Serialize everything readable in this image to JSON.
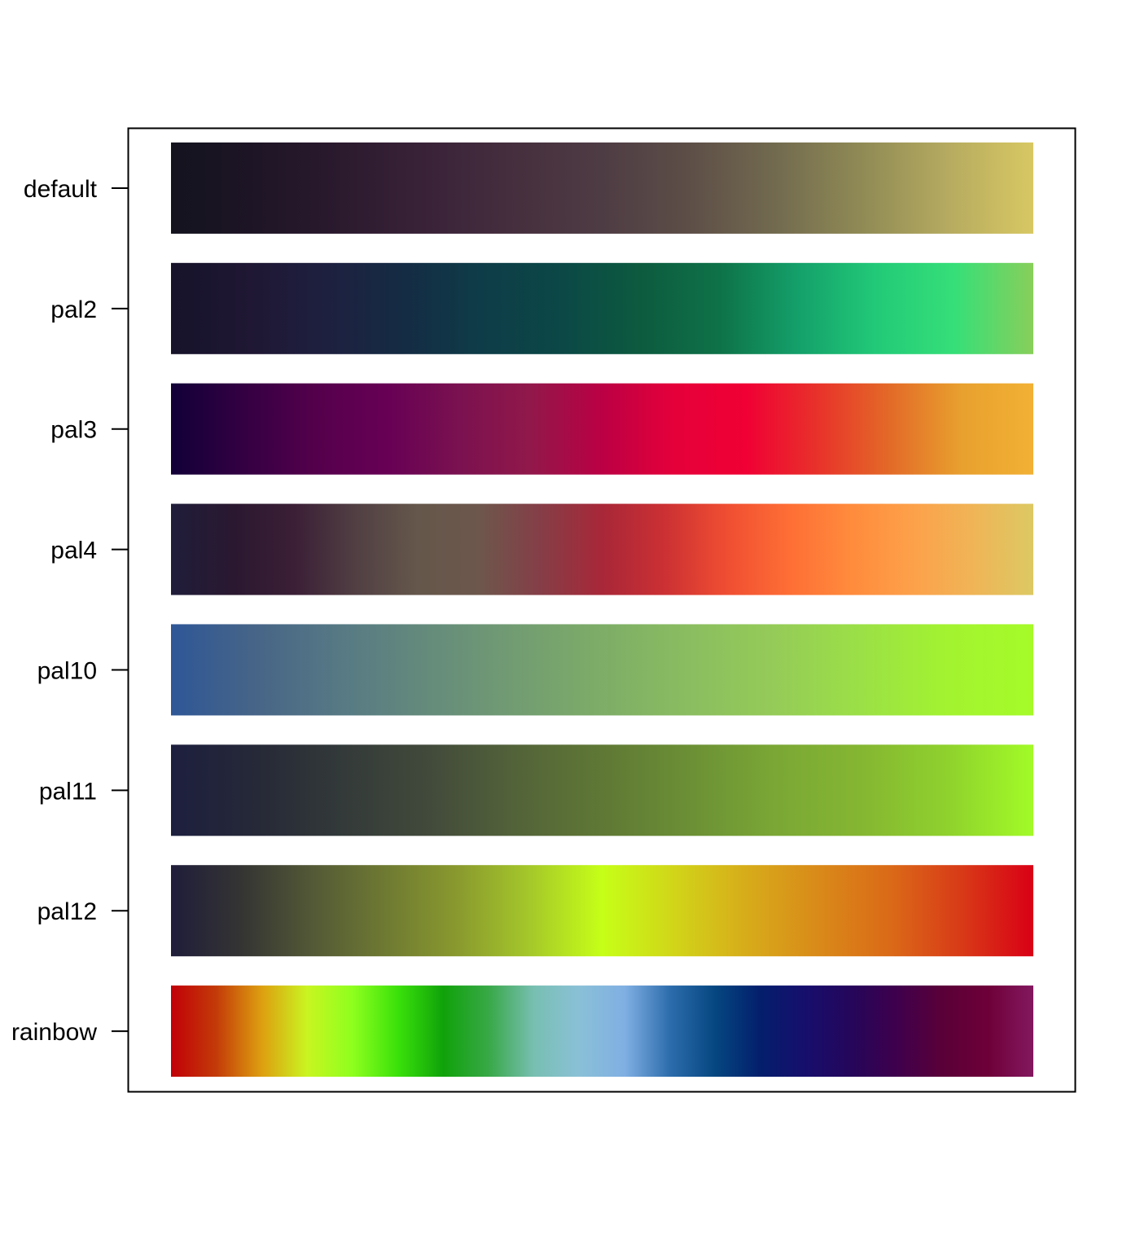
{
  "chart_data": {
    "type": "heatmap",
    "title": "",
    "xlabel": "",
    "ylabel": "",
    "grid": false,
    "legend": "none",
    "ylim": [
      0.5,
      8.5
    ],
    "categories": [
      "default",
      "pal2",
      "pal3",
      "pal4",
      "pal10",
      "pal11",
      "pal12",
      "rainbow"
    ],
    "series": [
      {
        "name": "default",
        "colors": [
          "#13131e",
          "#1e1526",
          "#2c1a2f",
          "#3a2339",
          "#462f3e",
          "#4e3c44",
          "#5d4e47",
          "#726a4f",
          "#8f8a55",
          "#b5aa60",
          "#d8c863"
        ]
      },
      {
        "name": "pal2",
        "colors": [
          "#16132a",
          "#1f1733",
          "#1e2040",
          "#142c44",
          "#0e3d48",
          "#0b4846",
          "#0d5b3f",
          "#0e7248",
          "#14a06a",
          "#22ca78",
          "#36df78",
          "#88cf5a"
        ]
      },
      {
        "name": "pal3",
        "colors": [
          "#120038",
          "#330042",
          "#54004b",
          "#670055",
          "#7a1150",
          "#91184a",
          "#bb0044",
          "#e5003a",
          "#f00034",
          "#e8322a",
          "#e36a28",
          "#e8a02e",
          "#f2b135"
        ]
      },
      {
        "name": "pal4",
        "colors": [
          "#1f1d3a",
          "#2a1830",
          "#3b1f36",
          "#513f43",
          "#65574b",
          "#6d574c",
          "#853e47",
          "#a82738",
          "#cb3033",
          "#ef4d32",
          "#fe6d35",
          "#ff8a3c",
          "#fda04a",
          "#f0b456",
          "#dcc963"
        ]
      },
      {
        "name": "pal10",
        "colors": [
          "#2f5797",
          "#476587",
          "#577a84",
          "#658b7b",
          "#729c72",
          "#7dad67",
          "#8abd60",
          "#95cb58",
          "#9be046",
          "#a3f330",
          "#a5fb28"
        ]
      },
      {
        "name": "pal11",
        "colors": [
          "#1d1f3f",
          "#262937",
          "#333a39",
          "#424a3b",
          "#536339",
          "#5f7835",
          "#6b8f35",
          "#7aa735",
          "#85b632",
          "#8fd12d",
          "#a2fb27"
        ]
      },
      {
        "name": "pal12",
        "colors": [
          "#1f1d3a",
          "#353533",
          "#545a36",
          "#6f7a32",
          "#8a9a2e",
          "#a5c82a",
          "#c6ff17",
          "#d1d519",
          "#d7ac1a",
          "#d98a19",
          "#da6a18",
          "#d83a17",
          "#d90016"
        ]
      },
      {
        "name": "rainbow",
        "colors": [
          "#c10008",
          "#c33b08",
          "#dd9f10",
          "#c9f521",
          "#8eff1e",
          "#3ae10a",
          "#10a20a",
          "#38a847",
          "#78bfb2",
          "#8ac0d7",
          "#80afe3",
          "#2c6cac",
          "#054680",
          "#041e6c",
          "#170e6c",
          "#25065a",
          "#3f004c",
          "#5a0038",
          "#6e0038",
          "#83185f"
        ]
      }
    ]
  }
}
